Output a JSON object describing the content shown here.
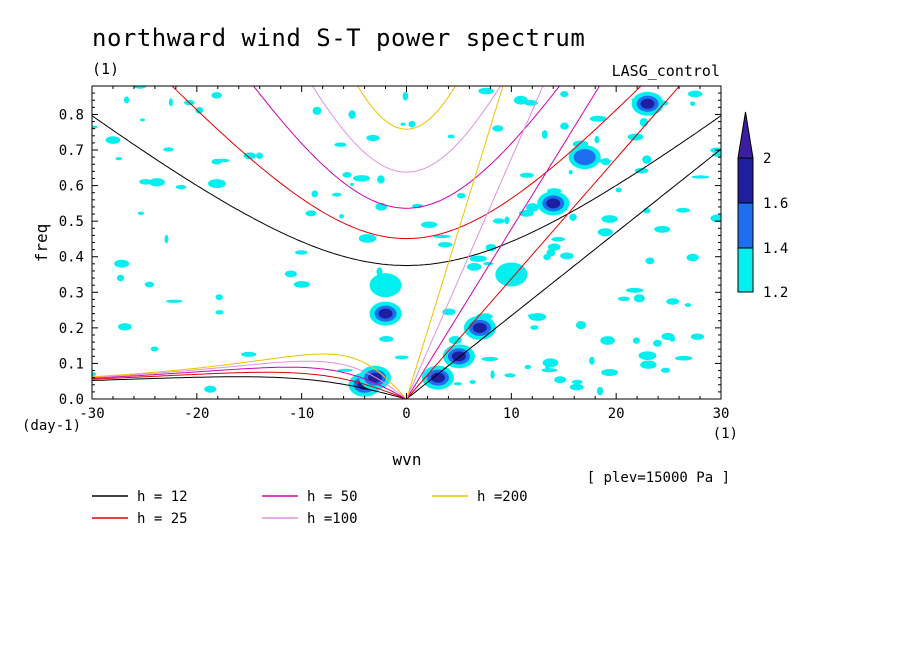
{
  "chart_data": {
    "type": "heatmap",
    "title": "northward wind S-T power spectrum",
    "subtitle_left": "(1)",
    "subtitle_right": "LASG_control",
    "xlabel": "wvn",
    "ylabel": "freq",
    "x_unit_label": "(1)",
    "y_unit_label": "(day-1)",
    "level_note": "[ plev=15000 Pa ]",
    "xlim": [
      -30,
      30
    ],
    "ylim": [
      0,
      0.88
    ],
    "x_ticks": [
      -30,
      -20,
      -10,
      0,
      10,
      20,
      30
    ],
    "x_tick_labels": [
      "-30",
      "-20",
      "-10",
      "0",
      "10",
      "20",
      "30"
    ],
    "y_ticks": [
      0.0,
      0.1,
      0.2,
      0.3,
      0.4,
      0.5,
      0.6,
      0.7,
      0.8
    ],
    "y_tick_labels": [
      "0.0",
      "0.1",
      "0.2",
      "0.3",
      "0.4",
      "0.5",
      "0.6",
      "0.7",
      "0.8"
    ],
    "colorbar": {
      "levels": [
        1.2,
        1.4,
        1.6,
        2
      ],
      "level_labels": [
        "1.2",
        "1.4",
        "1.6",
        "2"
      ],
      "colors": [
        "#00f0f0",
        "#1e6ef0",
        "#1e1ea0",
        "#3c1ea0"
      ]
    },
    "dispersion_curves": [
      {
        "label": "h = 12",
        "h": 12,
        "color": "#000000"
      },
      {
        "label": "h = 25",
        "h": 25,
        "color": "#e00000"
      },
      {
        "label": "h = 50",
        "h": 50,
        "color": "#d000b0"
      },
      {
        "label": "h =100",
        "h": 100,
        "color": "#e090e0"
      },
      {
        "label": "h =200",
        "h": 200,
        "color": "#f0c000"
      }
    ],
    "power_regions": [
      {
        "x": -4,
        "y": 0.04,
        "level": 2
      },
      {
        "x": -3,
        "y": 0.06,
        "level": 1.6
      },
      {
        "x": -2,
        "y": 0.24,
        "level": 1.6
      },
      {
        "x": -2,
        "y": 0.32,
        "level": 1.2
      },
      {
        "x": 3,
        "y": 0.06,
        "level": 1.6
      },
      {
        "x": 5,
        "y": 0.12,
        "level": 2
      },
      {
        "x": 7,
        "y": 0.2,
        "level": 1.6
      },
      {
        "x": 10,
        "y": 0.35,
        "level": 1.2
      },
      {
        "x": 14,
        "y": 0.55,
        "level": 1.6
      },
      {
        "x": 17,
        "y": 0.68,
        "level": 1.4
      },
      {
        "x": 23,
        "y": 0.83,
        "level": 1.6
      }
    ]
  }
}
